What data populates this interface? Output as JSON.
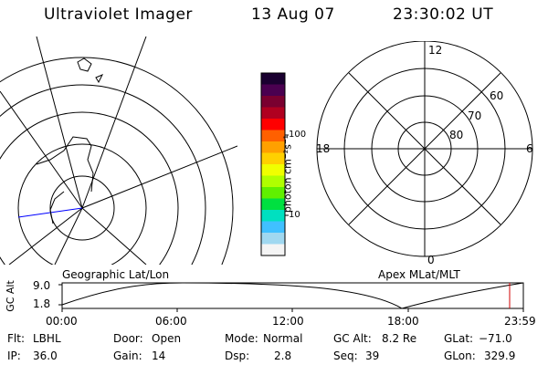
{
  "header": {
    "title": "Ultraviolet Imager",
    "date": "13 Aug 07",
    "time": "23:30:02 UT"
  },
  "left_panel": {
    "caption": "Geographic Lat/Lon"
  },
  "right_panel": {
    "caption": "Apex MLat/MLT",
    "mlt_labels": [
      "12",
      "18",
      "6",
      "0"
    ],
    "lat_labels": [
      "60",
      "70",
      "80"
    ]
  },
  "colorbar": {
    "unit_label": "photon cm⁻²s⁻¹",
    "tick_labels": [
      "100",
      "10"
    ],
    "colors": [
      "#1a0030",
      "#4a0050",
      "#7a0030",
      "#b00020",
      "#ff0000",
      "#ff6000",
      "#ffa000",
      "#ffd000",
      "#f0ff00",
      "#b0ff00",
      "#60f000",
      "#00e040",
      "#00e0c0",
      "#40c0ff",
      "#a0d8f0",
      "#f4f4f4"
    ]
  },
  "orbit_plot": {
    "ylabel": "GC Alt",
    "yticks": [
      "9.0",
      "1.8"
    ],
    "xticks": [
      "00:00",
      "06:00",
      "12:00",
      "18:00",
      "23:59"
    ],
    "marker_color": "#d00000"
  },
  "info": [
    {
      "label": "Flt:",
      "value": "LBHL"
    },
    {
      "label": "Door:",
      "value": "Open"
    },
    {
      "label": "Mode:",
      "value": "Normal"
    },
    {
      "label": "GC Alt:",
      "value": "8.2 Re"
    },
    {
      "label": "GLat:",
      "value": "−71.0"
    },
    {
      "label": "IP:",
      "value": "36.0"
    },
    {
      "label": "Gain:",
      "value": "14"
    },
    {
      "label": "Dsp:",
      "value": "2.8"
    },
    {
      "label": "Seq:",
      "value": "39"
    },
    {
      "label": "GLon:",
      "value": "329.9"
    }
  ]
}
